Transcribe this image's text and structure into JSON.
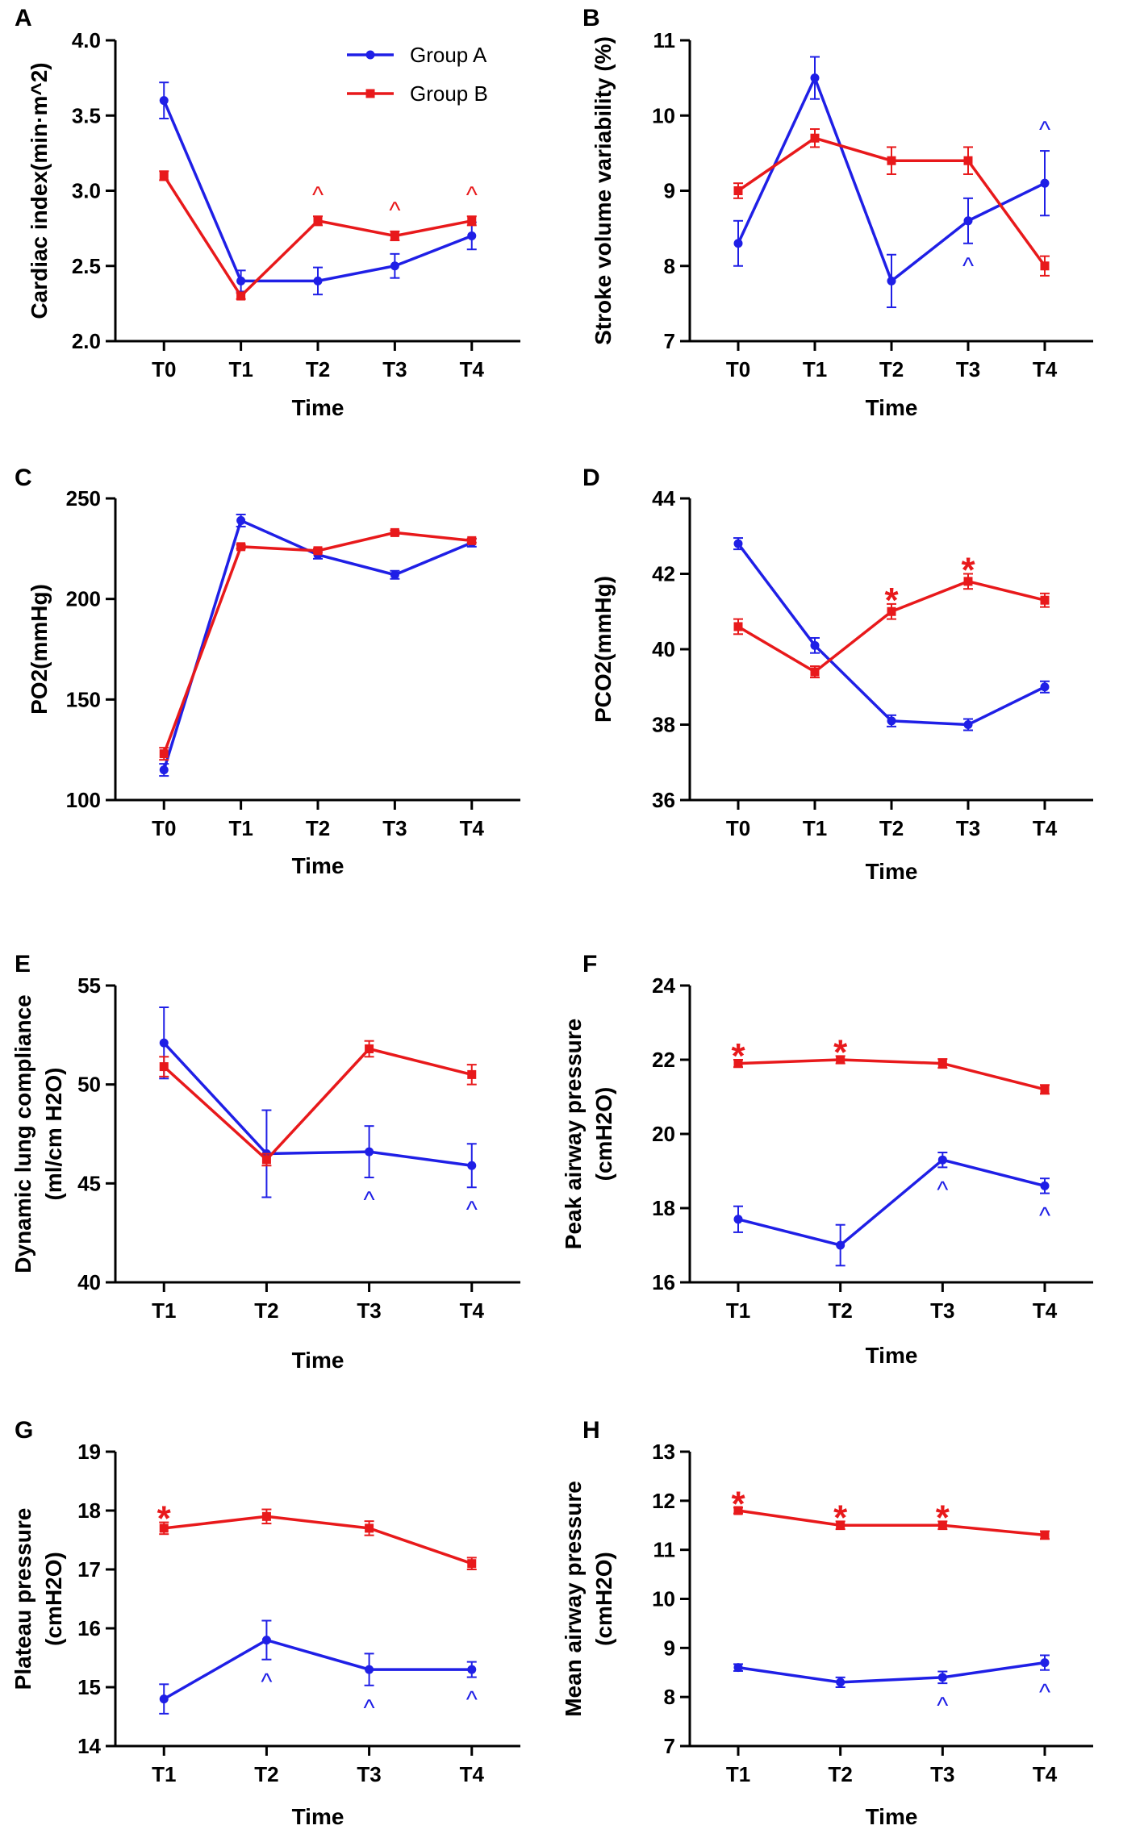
{
  "colors": {
    "group_a": "#1f1fe6",
    "group_b": "#e8191b",
    "axis": "#000000"
  },
  "legend": {
    "group_a": "Group A",
    "group_b": "Group B"
  },
  "chart_data": [
    {
      "id": "A",
      "type": "line",
      "title": "",
      "xlabel": "Time",
      "ylabel": "Cardiac index(min·m^2)",
      "categories": [
        "T0",
        "T1",
        "T2",
        "T3",
        "T4"
      ],
      "ylim": [
        2.0,
        4.0
      ],
      "yticks": [
        2.0,
        2.5,
        3.0,
        3.5,
        4.0
      ],
      "tick_format": 1,
      "legend_position": "top-right",
      "series": [
        {
          "name": "Group A",
          "values": [
            3.6,
            2.4,
            2.4,
            2.5,
            2.7
          ],
          "errors": [
            0.12,
            0.07,
            0.09,
            0.08,
            0.09
          ]
        },
        {
          "name": "Group B",
          "values": [
            3.1,
            2.3,
            2.8,
            2.7,
            2.8
          ],
          "errors": [
            0.03,
            0.02,
            0.03,
            0.03,
            0.03
          ]
        }
      ],
      "annotations": [
        {
          "text": "^",
          "series": "Group B",
          "index": 2,
          "position": "above"
        },
        {
          "text": "^",
          "series": "Group B",
          "index": 3,
          "position": "above"
        },
        {
          "text": "^",
          "series": "Group B",
          "index": 4,
          "position": "above"
        }
      ]
    },
    {
      "id": "B",
      "type": "line",
      "title": "",
      "xlabel": "Time",
      "ylabel": "Stroke volume variability (%)",
      "categories": [
        "T0",
        "T1",
        "T2",
        "T3",
        "T4"
      ],
      "ylim": [
        7,
        11
      ],
      "yticks": [
        7,
        8,
        9,
        10,
        11
      ],
      "tick_format": 0,
      "series": [
        {
          "name": "Group A",
          "values": [
            8.3,
            10.5,
            7.8,
            8.6,
            9.1
          ],
          "errors": [
            0.3,
            0.28,
            0.35,
            0.3,
            0.43
          ]
        },
        {
          "name": "Group B",
          "values": [
            9.0,
            9.7,
            9.4,
            9.4,
            8.0
          ],
          "errors": [
            0.1,
            0.12,
            0.18,
            0.18,
            0.13
          ]
        }
      ],
      "annotations": [
        {
          "text": "^",
          "series": "Group A",
          "index": 3,
          "position": "below"
        },
        {
          "text": "^",
          "series": "Group A",
          "index": 4,
          "position": "above"
        }
      ]
    },
    {
      "id": "C",
      "type": "line",
      "title": "",
      "xlabel": "Time",
      "ylabel": "PO2(mmHg)",
      "categories": [
        "T0",
        "T1",
        "T2",
        "T3",
        "T4"
      ],
      "ylim": [
        100,
        250
      ],
      "yticks": [
        100,
        150,
        200,
        250
      ],
      "tick_format": 0,
      "series": [
        {
          "name": "Group A",
          "values": [
            115,
            239,
            222,
            212,
            228
          ],
          "errors": [
            3,
            3,
            2,
            2,
            2
          ]
        },
        {
          "name": "Group B",
          "values": [
            123,
            226,
            224,
            233,
            229
          ],
          "errors": [
            3,
            1,
            1,
            1,
            1
          ]
        }
      ],
      "annotations": []
    },
    {
      "id": "D",
      "type": "line",
      "title": "",
      "xlabel": "Time",
      "ylabel": "PCO2(mmHg)",
      "categories": [
        "T0",
        "T1",
        "T2",
        "T3",
        "T4"
      ],
      "ylim": [
        36,
        44
      ],
      "yticks": [
        36,
        38,
        40,
        42,
        44
      ],
      "tick_format": 0,
      "series": [
        {
          "name": "Group A",
          "values": [
            42.8,
            40.1,
            38.1,
            38.0,
            39.0
          ],
          "errors": [
            0.15,
            0.2,
            0.15,
            0.15,
            0.15
          ]
        },
        {
          "name": "Group B",
          "values": [
            40.6,
            39.4,
            41.0,
            41.8,
            41.3
          ],
          "errors": [
            0.2,
            0.15,
            0.2,
            0.2,
            0.18
          ]
        }
      ],
      "annotations": [
        {
          "text": "*",
          "series": "Group B",
          "index": 2,
          "position": "above"
        },
        {
          "text": "*",
          "series": "Group B",
          "index": 3,
          "position": "above"
        }
      ]
    },
    {
      "id": "E",
      "type": "line",
      "title": "",
      "xlabel": "Time",
      "ylabel": [
        "Dynamic lung compliance",
        "(ml/cm H2O)"
      ],
      "categories": [
        "T1",
        "T2",
        "T3",
        "T4"
      ],
      "ylim": [
        40,
        55
      ],
      "yticks": [
        40,
        45,
        50,
        55
      ],
      "tick_format": 0,
      "series": [
        {
          "name": "Group A",
          "values": [
            52.1,
            46.5,
            46.6,
            45.9
          ],
          "errors": [
            1.8,
            2.2,
            1.3,
            1.1
          ]
        },
        {
          "name": "Group B",
          "values": [
            50.9,
            46.2,
            51.8,
            50.5
          ],
          "errors": [
            0.5,
            0.3,
            0.4,
            0.5
          ]
        }
      ],
      "annotations": [
        {
          "text": "^",
          "series": "Group A",
          "index": 2,
          "position": "below"
        },
        {
          "text": "^",
          "series": "Group A",
          "index": 3,
          "position": "below"
        }
      ]
    },
    {
      "id": "F",
      "type": "line",
      "title": "",
      "xlabel": "Time",
      "ylabel": [
        "Peak airway pressure",
        "(cmH2O)"
      ],
      "categories": [
        "T1",
        "T2",
        "T3",
        "T4"
      ],
      "ylim": [
        16,
        24
      ],
      "yticks": [
        16,
        18,
        20,
        22,
        24
      ],
      "tick_format": 0,
      "series": [
        {
          "name": "Group A",
          "values": [
            17.7,
            17.0,
            19.3,
            18.6
          ],
          "errors": [
            0.35,
            0.55,
            0.2,
            0.2
          ]
        },
        {
          "name": "Group B",
          "values": [
            21.9,
            22.0,
            21.9,
            21.2
          ],
          "errors": [
            0.1,
            0.1,
            0.12,
            0.12
          ]
        }
      ],
      "annotations": [
        {
          "text": "*",
          "series": "Group B",
          "index": 0,
          "position": "above"
        },
        {
          "text": "*",
          "series": "Group B",
          "index": 1,
          "position": "above"
        },
        {
          "text": "^",
          "series": "Group A",
          "index": 2,
          "position": "below"
        },
        {
          "text": "^",
          "series": "Group A",
          "index": 3,
          "position": "below"
        }
      ]
    },
    {
      "id": "G",
      "type": "line",
      "title": "",
      "xlabel": "Time",
      "ylabel": [
        "Plateau pressure",
        "(cmH2O)"
      ],
      "categories": [
        "T1",
        "T2",
        "T3",
        "T4"
      ],
      "ylim": [
        14,
        19
      ],
      "yticks": [
        14,
        15,
        16,
        17,
        18,
        19
      ],
      "tick_format": 0,
      "series": [
        {
          "name": "Group A",
          "values": [
            14.8,
            15.8,
            15.3,
            15.3
          ],
          "errors": [
            0.25,
            0.33,
            0.27,
            0.13
          ]
        },
        {
          "name": "Group B",
          "values": [
            17.7,
            17.9,
            17.7,
            17.1
          ],
          "errors": [
            0.1,
            0.12,
            0.12,
            0.1
          ]
        }
      ],
      "annotations": [
        {
          "text": "*",
          "series": "Group B",
          "index": 0,
          "position": "above"
        },
        {
          "text": "^",
          "series": "Group A",
          "index": 1,
          "position": "below"
        },
        {
          "text": "^",
          "series": "Group A",
          "index": 2,
          "position": "below"
        },
        {
          "text": "^",
          "series": "Group A",
          "index": 3,
          "position": "below"
        }
      ]
    },
    {
      "id": "H",
      "type": "line",
      "title": "",
      "xlabel": "Time",
      "ylabel": [
        "Mean airway pressure",
        "(cmH2O)"
      ],
      "categories": [
        "T1",
        "T2",
        "T3",
        "T4"
      ],
      "ylim": [
        7,
        13
      ],
      "yticks": [
        7,
        8,
        9,
        10,
        11,
        12,
        13
      ],
      "tick_format": 0,
      "series": [
        {
          "name": "Group A",
          "values": [
            8.6,
            8.3,
            8.4,
            8.7
          ],
          "errors": [
            0.07,
            0.1,
            0.12,
            0.15
          ]
        },
        {
          "name": "Group B",
          "values": [
            11.8,
            11.5,
            11.5,
            11.3
          ],
          "errors": [
            0.06,
            0.08,
            0.08,
            0.08
          ]
        }
      ],
      "annotations": [
        {
          "text": "*",
          "series": "Group B",
          "index": 0,
          "position": "above"
        },
        {
          "text": "*",
          "series": "Group B",
          "index": 1,
          "position": "above"
        },
        {
          "text": "*",
          "series": "Group B",
          "index": 2,
          "position": "above"
        },
        {
          "text": "^",
          "series": "Group A",
          "index": 2,
          "position": "below"
        },
        {
          "text": "^",
          "series": "Group A",
          "index": 3,
          "position": "below"
        }
      ]
    }
  ]
}
